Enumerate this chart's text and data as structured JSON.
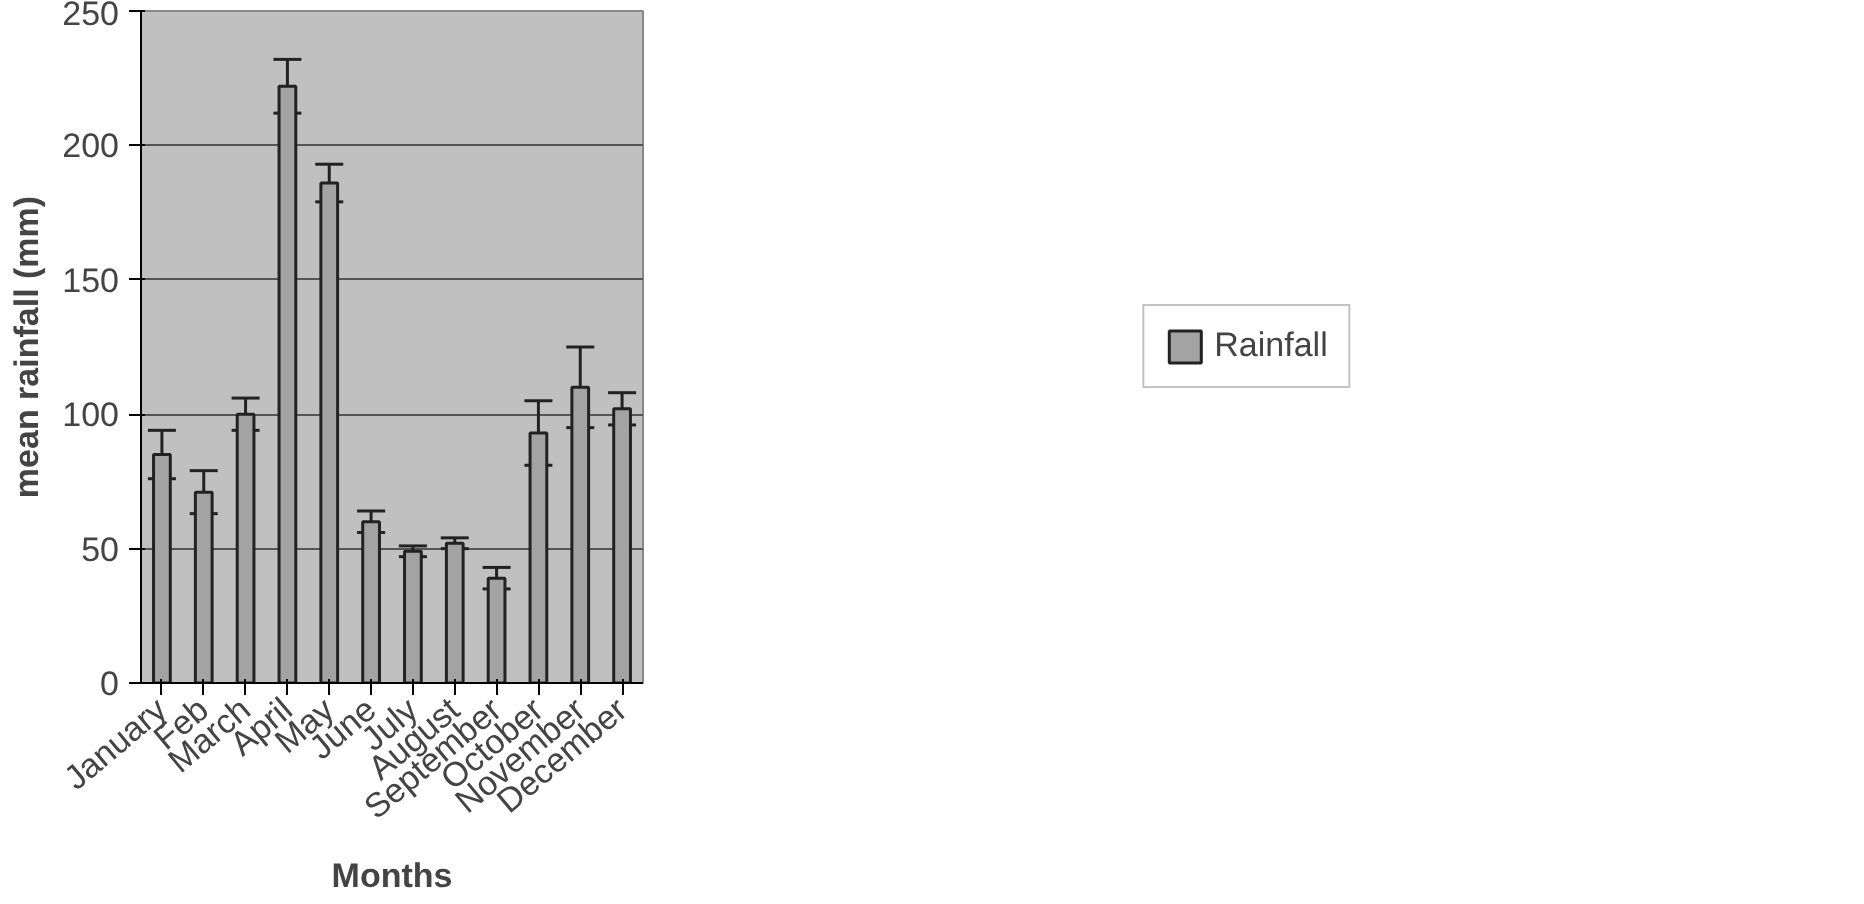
{
  "chart_data": {
    "type": "bar",
    "xlabel": "Months",
    "ylabel": "mean rainfall (mm)",
    "categories": [
      "January",
      "Feb",
      "March",
      "April",
      "May",
      "June",
      "July",
      "August",
      "September",
      "October",
      "November",
      "December"
    ],
    "series": [
      {
        "name": "Rainfall",
        "color": "#a3a3a3",
        "values": [
          85,
          71,
          100,
          222,
          186,
          60,
          49,
          52,
          39,
          93,
          110,
          102
        ],
        "errors": [
          9,
          8,
          6,
          10,
          7,
          4,
          2,
          2,
          4,
          12,
          15,
          6
        ]
      }
    ],
    "ylim": [
      0,
      250
    ],
    "yticks": [
      0,
      50,
      100,
      150,
      200,
      250
    ],
    "grid": "y",
    "legend": "right"
  }
}
